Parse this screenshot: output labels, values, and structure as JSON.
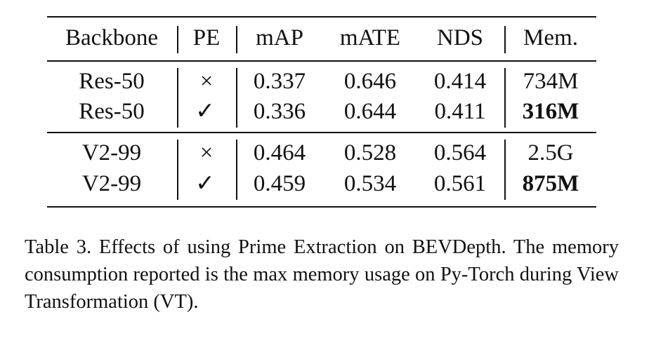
{
  "table": {
    "headers": {
      "backbone": "Backbone",
      "pe": "PE",
      "map": "mAP",
      "mate": "mATE",
      "nds": "NDS",
      "mem": "Mem."
    },
    "rows": [
      {
        "backbone": "Res-50",
        "pe": "×",
        "map": "0.337",
        "mate": "0.646",
        "nds": "0.414",
        "mem": "734M",
        "mem_bold": false
      },
      {
        "backbone": "Res-50",
        "pe": "✓",
        "map": "0.336",
        "mate": "0.644",
        "nds": "0.411",
        "mem": "316M",
        "mem_bold": true
      },
      {
        "backbone": "V2-99",
        "pe": "×",
        "map": "0.464",
        "mate": "0.528",
        "nds": "0.564",
        "mem": "2.5G",
        "mem_bold": false
      },
      {
        "backbone": "V2-99",
        "pe": "✓",
        "map": "0.459",
        "mate": "0.534",
        "nds": "0.561",
        "mem": "875M",
        "mem_bold": true
      }
    ]
  },
  "caption": "Table 3.  Effects of using Prime Extraction on BEVDepth.  The memory consumption reported is the max memory usage on Py-Torch during View Transformation (VT)."
}
